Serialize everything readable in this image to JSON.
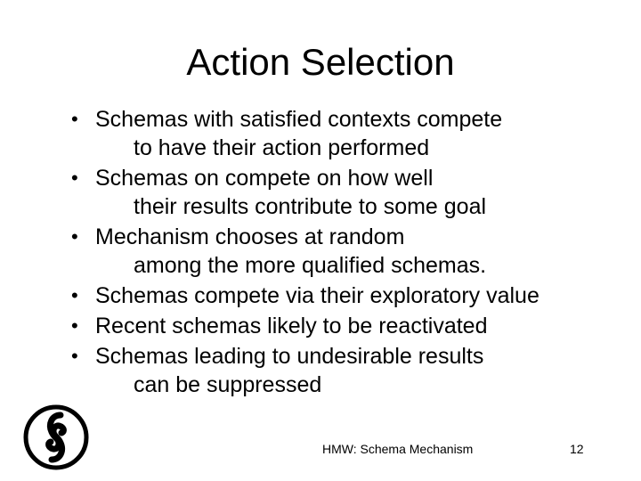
{
  "slide": {
    "title": "Action Selection",
    "bullets": [
      {
        "lines": [
          "Schemas with satisfied contexts compete",
          "to have their action performed"
        ]
      },
      {
        "lines": [
          "Schemas on compete on how well",
          "their results contribute to some goal"
        ]
      },
      {
        "lines": [
          "Mechanism chooses at random",
          "among the more qualified schemas."
        ]
      },
      {
        "lines": [
          "Schemas compete via their exploratory value"
        ]
      },
      {
        "lines": [
          "Recent schemas likely to be reactivated"
        ]
      },
      {
        "lines": [
          "Schemas leading to undesirable results",
          "can be suppressed"
        ]
      }
    ],
    "footer": "HMW: Schema Mechanism",
    "page_number": "12",
    "logo_icon": "circle-logo-icon",
    "bullet_glyph": "•"
  }
}
